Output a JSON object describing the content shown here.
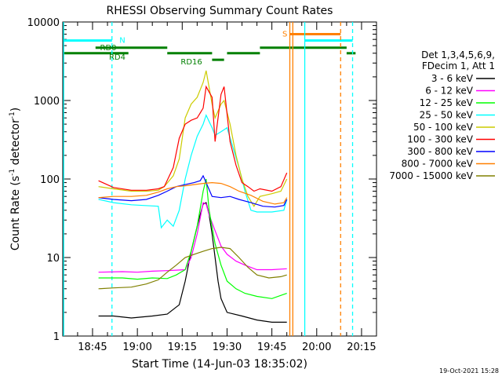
{
  "chart_data": {
    "type": "line",
    "title": "RHESSI Observing Summary Count Rates",
    "xlabel": "Start Time (14-Jun-03 18:35:02)",
    "ylabel_main": "Count Rate (s",
    "ylabel_sup": "-1",
    "ylabel_rest": " detector",
    "ylabel_sup2": "-1",
    "ylabel_close": ")",
    "y_scale": "log",
    "ylim": [
      1,
      10000
    ],
    "xlim": [
      "18:35:02",
      "20:20:00"
    ],
    "x_ticks": [
      "18:45",
      "19:00",
      "19:15",
      "19:30",
      "19:45",
      "20:00",
      "20:15"
    ],
    "y_ticks": [
      "1",
      "10",
      "100",
      "1000",
      "10000"
    ],
    "legend_header": [
      "Det 1,3,4,5,6,9,",
      "FDecim 1, Att 1"
    ],
    "legend_position": "right",
    "timestamp": "19-Oct-2021 15:28",
    "state_labels": {
      "night": "N",
      "saa": "S",
      "rd0": "RD0",
      "rd4": "RD4",
      "rd16": "RD16"
    },
    "series": [
      {
        "name": "3 - 6 keV",
        "color": "#000000",
        "points": [
          [
            "18:47:00",
            1.8
          ],
          [
            "18:52:00",
            1.8
          ],
          [
            "18:58:00",
            1.7
          ],
          [
            "19:05:00",
            1.8
          ],
          [
            "19:10:00",
            1.9
          ],
          [
            "19:14:00",
            2.5
          ],
          [
            "19:16:00",
            5
          ],
          [
            "19:18:00",
            12
          ],
          [
            "19:20:00",
            25
          ],
          [
            "19:21:00",
            35
          ],
          [
            "19:22:00",
            48
          ],
          [
            "19:23:00",
            50
          ],
          [
            "19:24:00",
            35
          ],
          [
            "19:25:00",
            20
          ],
          [
            "19:26:00",
            10
          ],
          [
            "19:27:00",
            5
          ],
          [
            "19:28:00",
            3
          ],
          [
            "19:30:00",
            2
          ],
          [
            "19:35:00",
            1.8
          ],
          [
            "19:40:00",
            1.6
          ],
          [
            "19:45:00",
            1.5
          ],
          [
            "19:50:00",
            1.5
          ]
        ]
      },
      {
        "name": "6 - 12 keV",
        "color": "#ff00ff",
        "points": [
          [
            "18:47:00",
            6.5
          ],
          [
            "18:55:00",
            6.6
          ],
          [
            "19:00:00",
            6.5
          ],
          [
            "19:05:00",
            6.7
          ],
          [
            "19:10:00",
            6.8
          ],
          [
            "19:13:00",
            6.9
          ],
          [
            "19:16:00",
            7
          ],
          [
            "19:18:00",
            10
          ],
          [
            "19:20:00",
            20
          ],
          [
            "19:22:00",
            50
          ],
          [
            "19:23:00",
            48
          ],
          [
            "19:24:00",
            35
          ],
          [
            "19:26:00",
            22
          ],
          [
            "19:28:00",
            14
          ],
          [
            "19:30:00",
            11
          ],
          [
            "19:33:00",
            9
          ],
          [
            "19:36:00",
            8
          ],
          [
            "19:40:00",
            7
          ],
          [
            "19:45:00",
            7
          ],
          [
            "19:50:00",
            7.2
          ]
        ]
      },
      {
        "name": "12 - 25 keV",
        "color": "#00ff00",
        "points": [
          [
            "18:47:00",
            5.5
          ],
          [
            "18:55:00",
            5.5
          ],
          [
            "19:00:00",
            5.3
          ],
          [
            "19:05:00",
            5.5
          ],
          [
            "19:10:00",
            5.4
          ],
          [
            "19:13:00",
            6
          ],
          [
            "19:16:00",
            7
          ],
          [
            "19:18:00",
            12
          ],
          [
            "19:20:00",
            25
          ],
          [
            "19:22:00",
            70
          ],
          [
            "19:23:00",
            100
          ],
          [
            "19:24:00",
            40
          ],
          [
            "19:26:00",
            15
          ],
          [
            "19:28:00",
            8
          ],
          [
            "19:30:00",
            5
          ],
          [
            "19:33:00",
            4
          ],
          [
            "19:36:00",
            3.5
          ],
          [
            "19:40:00",
            3.2
          ],
          [
            "19:45:00",
            3
          ],
          [
            "19:50:00",
            3.5
          ]
        ]
      },
      {
        "name": "25 - 50 keV",
        "color": "#00ffff",
        "points": [
          [
            "18:47:00",
            55
          ],
          [
            "18:52:00",
            50
          ],
          [
            "18:58:00",
            47
          ],
          [
            "19:02:00",
            46
          ],
          [
            "19:07:00",
            45
          ],
          [
            "19:08:00",
            24
          ],
          [
            "19:10:00",
            30
          ],
          [
            "19:12:00",
            25
          ],
          [
            "19:14:00",
            40
          ],
          [
            "19:16:00",
            100
          ],
          [
            "19:18:00",
            200
          ],
          [
            "19:20:00",
            350
          ],
          [
            "19:22:00",
            500
          ],
          [
            "19:23:00",
            650
          ],
          [
            "19:25:00",
            450
          ],
          [
            "19:26:00",
            360
          ],
          [
            "19:28:00",
            400
          ],
          [
            "19:30:00",
            450
          ],
          [
            "19:32:00",
            250
          ],
          [
            "19:34:00",
            140
          ],
          [
            "19:36:00",
            70
          ],
          [
            "19:38:00",
            40
          ],
          [
            "19:40:00",
            38
          ],
          [
            "19:45:00",
            38
          ],
          [
            "19:49:00",
            40
          ],
          [
            "19:50:00",
            55
          ]
        ]
      },
      {
        "name": "50 - 100 keV",
        "color": "#cccc00",
        "points": [
          [
            "18:47:00",
            80
          ],
          [
            "18:52:00",
            75
          ],
          [
            "18:58:00",
            70
          ],
          [
            "19:03:00",
            70
          ],
          [
            "19:07:00",
            72
          ],
          [
            "19:09:00",
            80
          ],
          [
            "19:12:00",
            110
          ],
          [
            "19:14:00",
            180
          ],
          [
            "19:16:00",
            600
          ],
          [
            "19:18:00",
            900
          ],
          [
            "19:20:00",
            1100
          ],
          [
            "19:22:00",
            1700
          ],
          [
            "19:23:00",
            2400
          ],
          [
            "19:25:00",
            900
          ],
          [
            "19:26:00",
            600
          ],
          [
            "19:28:00",
            900
          ],
          [
            "19:29:00",
            1000
          ],
          [
            "19:31:00",
            500
          ],
          [
            "19:33:00",
            200
          ],
          [
            "19:35:00",
            100
          ],
          [
            "19:37:00",
            60
          ],
          [
            "19:39:00",
            45
          ],
          [
            "19:41:00",
            60
          ],
          [
            "19:45:00",
            65
          ],
          [
            "19:48:00",
            70
          ],
          [
            "19:50:00",
            100
          ]
        ]
      },
      {
        "name": "100 - 300 keV",
        "color": "#ff0000",
        "points": [
          [
            "18:47:00",
            95
          ],
          [
            "18:52:00",
            78
          ],
          [
            "18:58:00",
            72
          ],
          [
            "19:03:00",
            72
          ],
          [
            "19:07:00",
            75
          ],
          [
            "19:09:00",
            80
          ],
          [
            "19:12:00",
            140
          ],
          [
            "19:14:00",
            330
          ],
          [
            "19:16:00",
            500
          ],
          [
            "19:18:00",
            560
          ],
          [
            "19:20:00",
            600
          ],
          [
            "19:22:00",
            800
          ],
          [
            "19:23:00",
            1500
          ],
          [
            "19:25:00",
            1100
          ],
          [
            "19:26:00",
            300
          ],
          [
            "19:28:00",
            1200
          ],
          [
            "19:29:00",
            1500
          ],
          [
            "19:31:00",
            300
          ],
          [
            "19:33:00",
            150
          ],
          [
            "19:35:00",
            90
          ],
          [
            "19:37:00",
            80
          ],
          [
            "19:39:00",
            70
          ],
          [
            "19:41:00",
            75
          ],
          [
            "19:45:00",
            70
          ],
          [
            "19:48:00",
            80
          ],
          [
            "19:50:00",
            120
          ]
        ]
      },
      {
        "name": "300 - 800 keV",
        "color": "#0000ff",
        "points": [
          [
            "18:47:00",
            58
          ],
          [
            "18:52:00",
            55
          ],
          [
            "18:58:00",
            53
          ],
          [
            "19:03:00",
            55
          ],
          [
            "19:07:00",
            62
          ],
          [
            "19:10:00",
            70
          ],
          [
            "19:13:00",
            80
          ],
          [
            "19:16:00",
            85
          ],
          [
            "19:19:00",
            90
          ],
          [
            "19:21:00",
            95
          ],
          [
            "19:22:00",
            110
          ],
          [
            "19:23:00",
            90
          ],
          [
            "19:25:00",
            60
          ],
          [
            "19:28:00",
            58
          ],
          [
            "19:31:00",
            60
          ],
          [
            "19:34:00",
            55
          ],
          [
            "19:38:00",
            50
          ],
          [
            "19:42:00",
            45
          ],
          [
            "19:46:00",
            44
          ],
          [
            "19:49:00",
            46
          ],
          [
            "19:50:00",
            55
          ]
        ]
      },
      {
        "name": "800 - 7000 keV",
        "color": "#ff8000",
        "points": [
          [
            "18:47:00",
            58
          ],
          [
            "18:52:00",
            60
          ],
          [
            "18:58:00",
            60
          ],
          [
            "19:03:00",
            62
          ],
          [
            "19:07:00",
            68
          ],
          [
            "19:10:00",
            75
          ],
          [
            "19:13:00",
            80
          ],
          [
            "19:16:00",
            82
          ],
          [
            "19:19:00",
            85
          ],
          [
            "19:22:00",
            88
          ],
          [
            "19:25:00",
            90
          ],
          [
            "19:28:00",
            88
          ],
          [
            "19:31:00",
            80
          ],
          [
            "19:34:00",
            70
          ],
          [
            "19:38:00",
            62
          ],
          [
            "19:42:00",
            52
          ],
          [
            "19:46:00",
            48
          ],
          [
            "19:49:00",
            50
          ],
          [
            "19:50:00",
            58
          ]
        ]
      },
      {
        "name": "7000 - 15000 keV",
        "color": "#808000",
        "points": [
          [
            "18:47:00",
            4
          ],
          [
            "18:52:00",
            4.1
          ],
          [
            "18:58:00",
            4.2
          ],
          [
            "19:03:00",
            4.6
          ],
          [
            "19:07:00",
            5.2
          ],
          [
            "19:10:00",
            6.5
          ],
          [
            "19:13:00",
            8
          ],
          [
            "19:16:00",
            10
          ],
          [
            "19:19:00",
            11
          ],
          [
            "19:22:00",
            12
          ],
          [
            "19:25:00",
            13
          ],
          [
            "19:28:00",
            13.5
          ],
          [
            "19:31:00",
            13
          ],
          [
            "19:34:00",
            10
          ],
          [
            "19:37:00",
            7.5
          ],
          [
            "19:40:00",
            6
          ],
          [
            "19:44:00",
            5.5
          ],
          [
            "19:48:00",
            5.7
          ],
          [
            "19:50:00",
            6
          ]
        ]
      }
    ],
    "markers": [
      {
        "type": "night",
        "time": "18:35:20",
        "style": "solid",
        "color": "#00ffff"
      },
      {
        "type": "night",
        "time": "18:51:30",
        "style": "dashed",
        "color": "#00ffff"
      },
      {
        "type": "saa",
        "time": "19:51:00",
        "style": "solid",
        "color": "#ff8000"
      },
      {
        "type": "saa",
        "time": "19:52:00",
        "style": "solid",
        "color": "#ff8000"
      },
      {
        "type": "night",
        "time": "19:56:00",
        "style": "solid",
        "color": "#00ffff"
      },
      {
        "type": "saa",
        "time": "20:08:00",
        "style": "dashed",
        "color": "#ff8000"
      },
      {
        "type": "night",
        "time": "20:12:00",
        "style": "dashed",
        "color": "#00ffff"
      }
    ],
    "bars": [
      {
        "type": "night",
        "color": "#00ffff",
        "y": 5800,
        "start": "18:35:20",
        "end": "18:51:30"
      },
      {
        "type": "night",
        "color": "#00ffff",
        "y": 5800,
        "start": "19:56:00",
        "end": "20:12:00"
      },
      {
        "type": "saa",
        "color": "#ff8000",
        "y": 7000,
        "start": "19:51:00",
        "end": "20:08:00"
      },
      {
        "type": "rd",
        "color": "#008000",
        "y": 4700,
        "start": "18:46:00",
        "end": "19:10:00"
      },
      {
        "type": "rd",
        "color": "#008000",
        "y": 4000,
        "start": "18:35:20",
        "end": "18:57:00"
      },
      {
        "type": "rd",
        "color": "#008000",
        "y": 4000,
        "start": "19:10:00",
        "end": "19:25:00"
      },
      {
        "type": "rd",
        "color": "#008000",
        "y": 3300,
        "start": "19:25:00",
        "end": "19:29:00"
      },
      {
        "type": "rd",
        "color": "#008000",
        "y": 4000,
        "start": "19:30:00",
        "end": "19:41:00"
      },
      {
        "type": "rd",
        "color": "#008000",
        "y": 4700,
        "start": "19:41:00",
        "end": "20:10:00"
      },
      {
        "type": "rd",
        "color": "#008000",
        "y": 4000,
        "start": "20:10:00",
        "end": "20:13:00"
      }
    ]
  }
}
